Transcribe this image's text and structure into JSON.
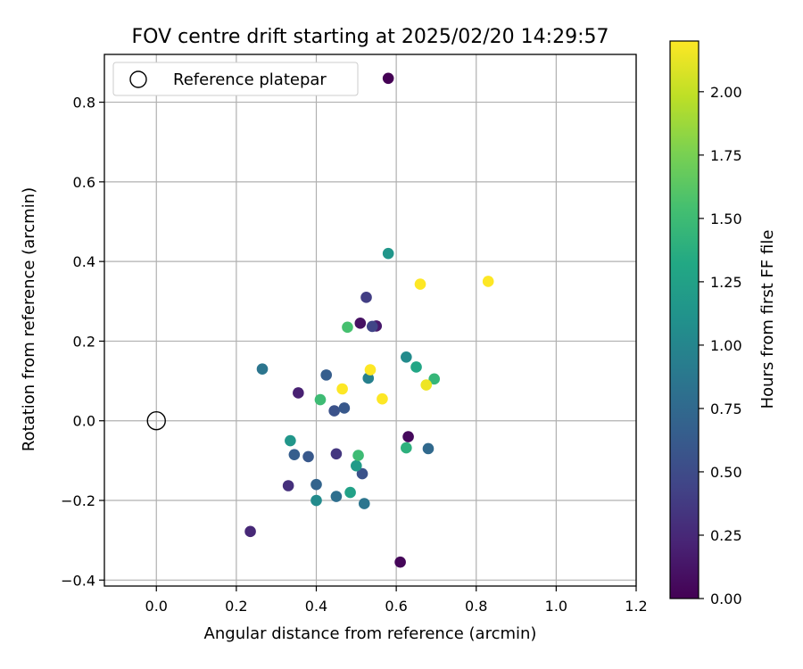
{
  "chart_data": {
    "type": "scatter",
    "title": "FOV centre drift starting at 2025/02/20 14:29:57",
    "xlabel": "Angular distance from reference (arcmin)",
    "ylabel": "Rotation from reference (arcmin)",
    "xlim": [
      -0.13,
      1.2
    ],
    "ylim": [
      -0.415,
      0.92
    ],
    "xticks": [
      0.0,
      0.2,
      0.4,
      0.6,
      0.8,
      1.0,
      1.2
    ],
    "xtick_labels": [
      "0.0",
      "0.2",
      "0.4",
      "0.6",
      "0.8",
      "1.0",
      "1.2"
    ],
    "yticks": [
      -0.4,
      -0.2,
      0.0,
      0.2,
      0.4,
      0.6,
      0.8
    ],
    "ytick_labels": [
      "−0.4",
      "−0.2",
      "0.0",
      "0.2",
      "0.4",
      "0.6",
      "0.8"
    ],
    "grid": true,
    "legend": {
      "placement": "upper-left",
      "entries": [
        "Reference platepar"
      ]
    },
    "reference_point": {
      "x": 0.0,
      "y": 0.0
    },
    "colorbar": {
      "label": "Hours from first FF file",
      "colormap": "viridis",
      "range": [
        0.0,
        2.2
      ],
      "ticks": [
        0.0,
        0.25,
        0.5,
        0.75,
        1.0,
        1.25,
        1.5,
        1.75,
        2.0
      ],
      "tick_labels": [
        "0.00",
        "0.25",
        "0.50",
        "0.75",
        "1.00",
        "1.25",
        "1.50",
        "1.75",
        "2.00"
      ]
    },
    "points": [
      {
        "x": 0.58,
        "y": 0.86,
        "hours": 0.0
      },
      {
        "x": 0.61,
        "y": -0.355,
        "hours": 0.03
      },
      {
        "x": 0.63,
        "y": -0.04,
        "hours": 0.05
      },
      {
        "x": 0.51,
        "y": 0.245,
        "hours": 0.1
      },
      {
        "x": 0.55,
        "y": 0.238,
        "hours": 0.15
      },
      {
        "x": 0.355,
        "y": 0.07,
        "hours": 0.2
      },
      {
        "x": 0.235,
        "y": -0.278,
        "hours": 0.25
      },
      {
        "x": 0.33,
        "y": -0.163,
        "hours": 0.3
      },
      {
        "x": 0.45,
        "y": -0.083,
        "hours": 0.35
      },
      {
        "x": 0.525,
        "y": 0.31,
        "hours": 0.4
      },
      {
        "x": 0.54,
        "y": 0.237,
        "hours": 0.45
      },
      {
        "x": 0.515,
        "y": -0.133,
        "hours": 0.55
      },
      {
        "x": 0.445,
        "y": 0.025,
        "hours": 0.55
      },
      {
        "x": 0.47,
        "y": 0.032,
        "hours": 0.6
      },
      {
        "x": 0.425,
        "y": 0.115,
        "hours": 0.65
      },
      {
        "x": 0.38,
        "y": -0.09,
        "hours": 0.6
      },
      {
        "x": 0.345,
        "y": -0.085,
        "hours": 0.65
      },
      {
        "x": 0.4,
        "y": -0.16,
        "hours": 0.7
      },
      {
        "x": 0.45,
        "y": -0.19,
        "hours": 0.8
      },
      {
        "x": 0.68,
        "y": -0.07,
        "hours": 0.75
      },
      {
        "x": 0.52,
        "y": -0.208,
        "hours": 0.85
      },
      {
        "x": 0.265,
        "y": 0.13,
        "hours": 0.85
      },
      {
        "x": 0.53,
        "y": 0.107,
        "hours": 0.95
      },
      {
        "x": 0.4,
        "y": -0.2,
        "hours": 1.05
      },
      {
        "x": 0.625,
        "y": 0.16,
        "hours": 1.05
      },
      {
        "x": 0.58,
        "y": 0.42,
        "hours": 1.15
      },
      {
        "x": 0.5,
        "y": -0.113,
        "hours": 1.2
      },
      {
        "x": 0.335,
        "y": -0.05,
        "hours": 1.15
      },
      {
        "x": 0.485,
        "y": -0.18,
        "hours": 1.25
      },
      {
        "x": 0.65,
        "y": 0.135,
        "hours": 1.3
      },
      {
        "x": 0.625,
        "y": -0.068,
        "hours": 1.4
      },
      {
        "x": 0.695,
        "y": 0.105,
        "hours": 1.45
      },
      {
        "x": 0.505,
        "y": -0.087,
        "hours": 1.5
      },
      {
        "x": 0.41,
        "y": 0.053,
        "hours": 1.5
      },
      {
        "x": 0.478,
        "y": 0.235,
        "hours": 1.55
      },
      {
        "x": 0.66,
        "y": 0.343,
        "hours": 2.2
      },
      {
        "x": 0.83,
        "y": 0.35,
        "hours": 2.2
      },
      {
        "x": 0.535,
        "y": 0.128,
        "hours": 2.2
      },
      {
        "x": 0.465,
        "y": 0.08,
        "hours": 2.2
      },
      {
        "x": 0.565,
        "y": 0.055,
        "hours": 2.2
      },
      {
        "x": 0.675,
        "y": 0.09,
        "hours": 2.15
      }
    ]
  }
}
